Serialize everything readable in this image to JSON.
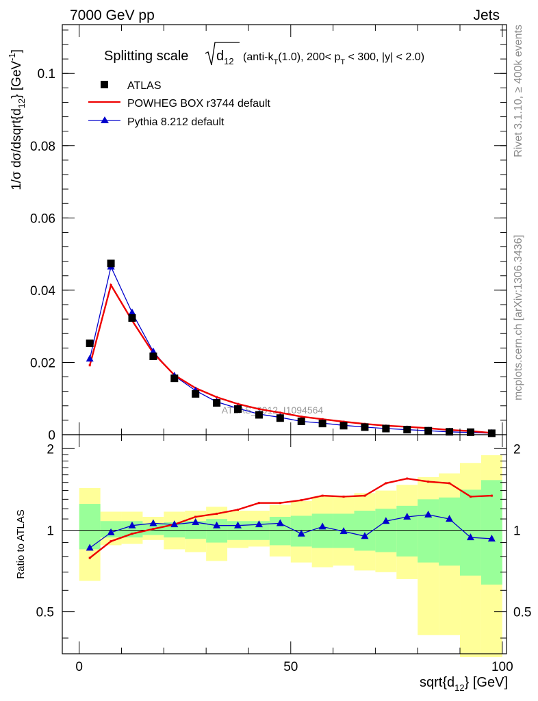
{
  "header": {
    "left": "7000 GeV pp",
    "right": "Jets"
  },
  "side": {
    "rivet": "Rivet 3.1.10, ≥ 400k events",
    "mcplots": "mcplots.cern.ch [arXiv:1306.3436]"
  },
  "watermark": "ATLAS_2012_I1094564",
  "chart_data": [
    {
      "type": "line",
      "title": "Splitting scale √d12 (anti-kT(1.0), 200< pT < 300, |y| < 2.0)",
      "title_parts": {
        "main": "Splitting scale",
        "d": "d",
        "d_sub": "12",
        "rest1": "(anti-k",
        "kt_sub": "T",
        "rest2": "(1.0), 200< p",
        "pt_sub": "T",
        "rest3": " < 300, |y| < 2.0)"
      },
      "ylabel": "1/σ dσ/dsqrt{d12} [GeV⁻¹]",
      "ylabel_parts": {
        "a": "1/σ dσ/dsqrt{d",
        "sub": "12",
        "b": "} [GeV",
        "sup": "-1",
        "c": "]"
      },
      "xlim": [
        -4,
        101
      ],
      "ylim": [
        0,
        0.1135
      ],
      "yticks": [
        {
          "v": 0,
          "label": "0"
        },
        {
          "v": 0.02,
          "label": "0.02"
        },
        {
          "v": 0.04,
          "label": "0.04"
        },
        {
          "v": 0.06,
          "label": "0.06"
        },
        {
          "v": 0.08,
          "label": "0.08"
        },
        {
          "v": 0.1,
          "label": "0.1"
        }
      ],
      "legend_position": "top-left",
      "legend": [
        {
          "label": "ATLAS",
          "marker": "square",
          "color": "#000000"
        },
        {
          "label": "POWHEG BOX r3744 default",
          "marker": "line",
          "color": "#ee0000"
        },
        {
          "label": "Pythia 8.212 default",
          "marker": "triangle",
          "color": "#0000cc"
        }
      ],
      "x": [
        2.5,
        7.5,
        12.5,
        17.5,
        22.5,
        27.5,
        32.5,
        37.5,
        42.5,
        47.5,
        52.5,
        57.5,
        62.5,
        67.5,
        72.5,
        77.5,
        82.5,
        87.5,
        92.5,
        97.5
      ],
      "series": [
        {
          "name": "ATLAS",
          "color": "#000000",
          "marker": "square",
          "values": [
            0.0253,
            0.0474,
            0.0323,
            0.0217,
            0.0156,
            0.0113,
            0.0088,
            0.0071,
            0.0055,
            0.0046,
            0.0037,
            0.0031,
            0.0025,
            0.0021,
            0.0017,
            0.0014,
            0.0011,
            0.0008,
            0.0007,
            0.0004
          ]
        },
        {
          "name": "POWHEG BOX r3744 default",
          "color": "#ee0000",
          "marker": "line",
          "values": [
            0.0192,
            0.0414,
            0.0316,
            0.0226,
            0.0165,
            0.0129,
            0.0104,
            0.0085,
            0.0071,
            0.0061,
            0.005,
            0.0043,
            0.0036,
            0.003,
            0.0025,
            0.0022,
            0.0018,
            0.0013,
            0.001,
            0.0005
          ]
        },
        {
          "name": "Pythia 8.212 default",
          "color": "#0000cc",
          "marker": "triangle",
          "values": [
            0.021,
            0.0465,
            0.0338,
            0.023,
            0.0163,
            0.0122,
            0.0091,
            0.0073,
            0.0057,
            0.0048,
            0.0037,
            0.0032,
            0.0026,
            0.0021,
            0.0017,
            0.0014,
            0.0011,
            0.0008,
            0.0006,
            0.0004
          ]
        }
      ]
    },
    {
      "type": "line",
      "ylabel": "Ratio to ATLAS",
      "xlabel": "sqrt{d12} [GeV]",
      "xlabel_parts": {
        "a": "sqrt{d",
        "sub": "12",
        "b": "} [GeV]"
      },
      "xlim": [
        -4,
        101
      ],
      "ylim": [
        0.35,
        2.25
      ],
      "xticks": [
        {
          "v": 0,
          "label": "0"
        },
        {
          "v": 50,
          "label": "50"
        },
        {
          "v": 100,
          "label": "100"
        }
      ],
      "yticks": [
        {
          "v": 0.5,
          "label": "0.5"
        },
        {
          "v": 1,
          "label": "1"
        },
        {
          "v": 2,
          "label": "2"
        }
      ],
      "bins": [
        [
          0,
          5
        ],
        [
          5,
          10
        ],
        [
          10,
          15
        ],
        [
          15,
          20
        ],
        [
          20,
          25
        ],
        [
          25,
          30
        ],
        [
          30,
          35
        ],
        [
          35,
          40
        ],
        [
          40,
          45
        ],
        [
          45,
          50
        ],
        [
          50,
          55
        ],
        [
          55,
          60
        ],
        [
          60,
          65
        ],
        [
          65,
          70
        ],
        [
          70,
          75
        ],
        [
          75,
          80
        ],
        [
          80,
          85
        ],
        [
          85,
          90
        ],
        [
          90,
          95
        ],
        [
          95,
          100
        ]
      ],
      "band_outer": {
        "color": "#ffff99",
        "low": [
          0.65,
          0.88,
          0.89,
          0.92,
          0.85,
          0.83,
          0.77,
          0.86,
          0.87,
          0.8,
          0.76,
          0.73,
          0.74,
          0.71,
          0.7,
          0.66,
          0.41,
          0.41,
          0.34,
          0.34
        ],
        "high": [
          1.43,
          1.17,
          1.17,
          1.12,
          1.17,
          1.18,
          1.22,
          1.18,
          1.18,
          1.24,
          1.28,
          1.33,
          1.34,
          1.37,
          1.4,
          1.47,
          1.57,
          1.62,
          1.77,
          1.89
        ]
      },
      "band_inner": {
        "color": "#99ff99",
        "low": [
          0.85,
          0.94,
          0.94,
          0.96,
          0.94,
          0.93,
          0.9,
          0.92,
          0.92,
          0.88,
          0.87,
          0.86,
          0.86,
          0.84,
          0.83,
          0.8,
          0.76,
          0.74,
          0.68,
          0.63
        ],
        "high": [
          1.25,
          1.08,
          1.08,
          1.06,
          1.07,
          1.08,
          1.1,
          1.08,
          1.08,
          1.12,
          1.13,
          1.15,
          1.15,
          1.18,
          1.2,
          1.23,
          1.3,
          1.32,
          1.41,
          1.53
        ]
      },
      "x": [
        2.5,
        7.5,
        12.5,
        17.5,
        22.5,
        27.5,
        32.5,
        37.5,
        42.5,
        47.5,
        52.5,
        57.5,
        62.5,
        67.5,
        72.5,
        77.5,
        82.5,
        87.5,
        92.5,
        97.5
      ],
      "series": [
        {
          "name": "POWHEG BOX r3744 default",
          "color": "#ee0000",
          "marker": "dot",
          "values": [
            0.79,
            0.91,
            0.97,
            1.01,
            1.05,
            1.12,
            1.15,
            1.19,
            1.26,
            1.26,
            1.29,
            1.34,
            1.33,
            1.34,
            1.49,
            1.55,
            1.51,
            1.49,
            1.33,
            1.34
          ]
        },
        {
          "name": "Pythia 8.212 default",
          "color": "#0000cc",
          "marker": "triangle",
          "values": [
            0.86,
            0.98,
            1.04,
            1.06,
            1.05,
            1.07,
            1.04,
            1.04,
            1.05,
            1.06,
            0.97,
            1.03,
            0.99,
            0.95,
            1.08,
            1.12,
            1.14,
            1.1,
            0.94,
            0.93
          ]
        }
      ]
    }
  ]
}
